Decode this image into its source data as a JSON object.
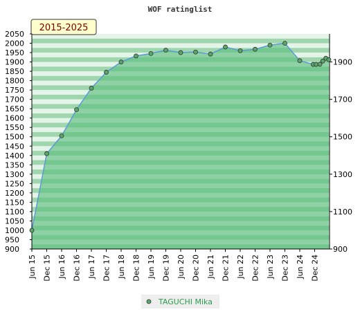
{
  "chart_data": {
    "type": "area",
    "title": "WOF ratinglist",
    "range_badge": "2015-2025",
    "x": [
      "Jun 15",
      "Dec 15",
      "Jun 16",
      "Dec 16",
      "Jun 17",
      "Dec 17",
      "Jun 18",
      "Dec 18",
      "Jun 19",
      "Dec 19",
      "Jun 20",
      "Dec 20",
      "Jun 21",
      "Dec 21",
      "Jun 22",
      "Dec 22",
      "Jun 23",
      "Dec 23",
      "Jun 24",
      "Dec 24"
    ],
    "left_ylim": [
      900,
      2050
    ],
    "left_ticks": [
      900,
      950,
      1000,
      1050,
      1100,
      1150,
      1200,
      1250,
      1300,
      1350,
      1400,
      1450,
      1500,
      1550,
      1600,
      1650,
      1700,
      1750,
      1800,
      1850,
      1900,
      1950,
      2000,
      2050
    ],
    "right_ticks": [
      900,
      1100,
      1300,
      1500,
      1700,
      1900
    ],
    "series": [
      {
        "name": "TAGUCHI Mika",
        "points": [
          {
            "t": 0.0,
            "v": 1000
          },
          {
            "t": 1.0,
            "v": 1410
          },
          {
            "t": 2.0,
            "v": 1505
          },
          {
            "t": 3.0,
            "v": 1645
          },
          {
            "t": 4.0,
            "v": 1760
          },
          {
            "t": 5.0,
            "v": 1845
          },
          {
            "t": 6.0,
            "v": 1900
          },
          {
            "t": 7.0,
            "v": 1932
          },
          {
            "t": 8.0,
            "v": 1945
          },
          {
            "t": 9.0,
            "v": 1963
          },
          {
            "t": 10.0,
            "v": 1950
          },
          {
            "t": 11.0,
            "v": 1953
          },
          {
            "t": 12.0,
            "v": 1942
          },
          {
            "t": 13.0,
            "v": 1980
          },
          {
            "t": 14.0,
            "v": 1960
          },
          {
            "t": 15.0,
            "v": 1968
          },
          {
            "t": 16.0,
            "v": 1990
          },
          {
            "t": 17.0,
            "v": 2000
          },
          {
            "t": 18.0,
            "v": 1907
          },
          {
            "t": 18.9,
            "v": 1887
          },
          {
            "t": 19.1,
            "v": 1887
          },
          {
            "t": 19.35,
            "v": 1888
          },
          {
            "t": 19.55,
            "v": 1905
          },
          {
            "t": 19.75,
            "v": 1920
          },
          {
            "t": 19.95,
            "v": 1912
          }
        ]
      }
    ],
    "grid": true,
    "legend_position": "bottom-center",
    "colors": {
      "fill": "#5fbf7f",
      "line": "#5b9bd5",
      "marker": "#5aa66a",
      "band_dark": "#9fd6ae",
      "band_light": "#e4f4e8",
      "badge_bg": "#ffffcc"
    }
  }
}
